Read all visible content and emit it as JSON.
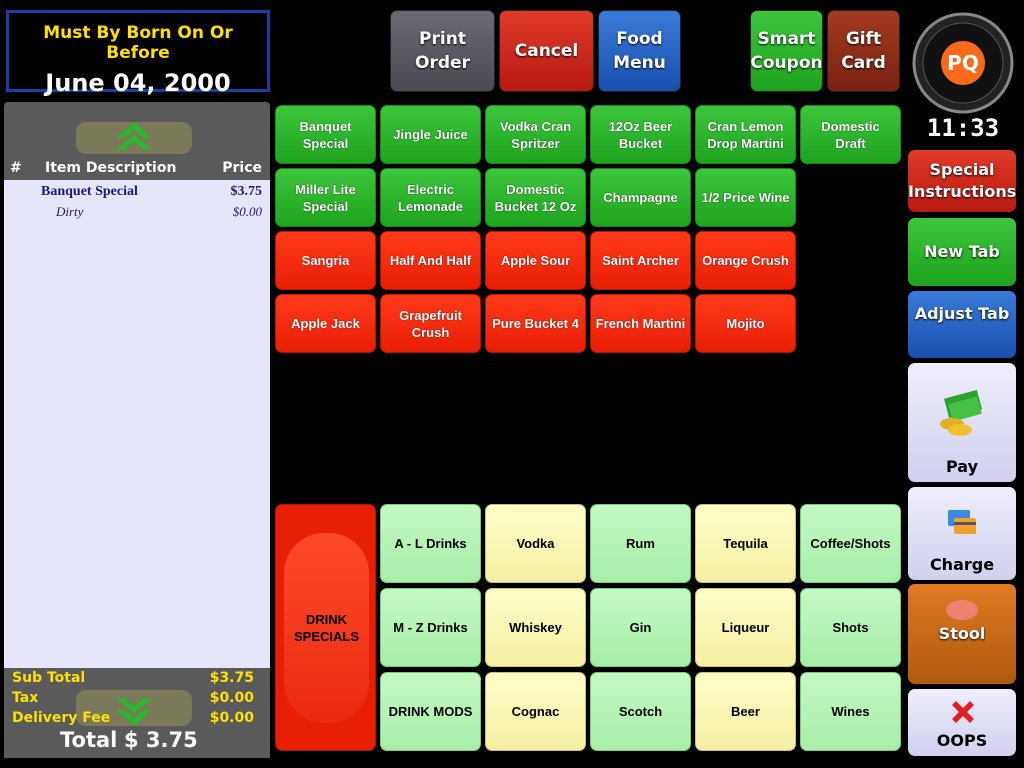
{
  "age_notice": {
    "label": "Must By Born On Or Before",
    "date": "June 04, 2000"
  },
  "top_buttons": [
    "Print Order",
    "Cancel",
    "Food Menu",
    "Smart Coupon",
    "Gift Card"
  ],
  "logo": "PQ",
  "clock": "11:33",
  "order": {
    "columns": [
      "#",
      "Item Description",
      "Price"
    ],
    "items": [
      {
        "name": "Banquet Special",
        "price": "$3.75",
        "modifiers": [
          {
            "name": "Dirty",
            "price": "$0.00"
          }
        ]
      }
    ],
    "subtotals": [
      {
        "label": "Sub Total",
        "value": "$3.75"
      },
      {
        "label": "Tax",
        "value": "$0.00"
      },
      {
        "label": "Delivery Fee",
        "value": "$0.00"
      }
    ],
    "total": {
      "label": "Total",
      "value": "$ 3.75"
    }
  },
  "menu_rows": [
    [
      "Banquet Special",
      "Jingle Juice",
      "Vodka Cran Spritzer",
      "12Oz Beer Bucket",
      "Cran Lemon Drop Martini",
      "Domestic Draft"
    ],
    [
      "Miller Lite Special",
      "Electric Lemonade",
      "Domestic Bucket 12 Oz",
      "Champagne",
      "1/2 Price Wine"
    ],
    [
      "Sangria",
      "Half And Half",
      "Apple Sour",
      "Saint Archer",
      "Orange Crush"
    ],
    [
      "Apple Jack",
      "Grapefruit Crush",
      "Pure Bucket  4",
      "French Martini",
      "Mojito"
    ]
  ],
  "drink_specials": "DRINK SPECIALS",
  "category_rows": [
    [
      "A - L Drinks",
      "Vodka",
      "Rum",
      "Tequila",
      "Coffee/Shots"
    ],
    [
      "M - Z Drinks",
      "Whiskey",
      "Gin",
      "Liqueur",
      "Shots"
    ],
    [
      "DRINK MODS",
      "Cognac",
      "Scotch",
      "Beer",
      "Wines"
    ]
  ],
  "side_buttons": [
    "Special Instructions",
    "New Tab",
    "Adjust Tab",
    "Pay",
    "Charge Card",
    "Stool",
    "OOPS"
  ]
}
